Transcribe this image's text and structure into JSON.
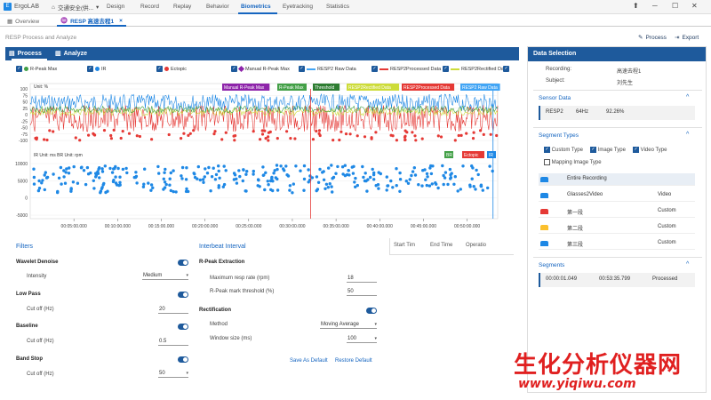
{
  "app": {
    "name": "ErgoLAB",
    "project": "交通安全(供..."
  },
  "nav": [
    "Design",
    "Record",
    "Replay",
    "Behavior",
    "Biometrics",
    "Eyetracking",
    "Statistics"
  ],
  "nav_active": "Biometrics",
  "tabs": [
    {
      "label": "Overview"
    },
    {
      "label": "RESP 高速去程1"
    }
  ],
  "subtitle": "RESP Process and Analyze",
  "actions": {
    "process": "Process",
    "export": "Export"
  },
  "panel": {
    "process": "Process",
    "analyze": "Analyze"
  },
  "legend": [
    {
      "label": "R-Peak Max",
      "color": "#43a047",
      "shape": "dot"
    },
    {
      "label": "IR",
      "color": "#1e88e5",
      "shape": "dot"
    },
    {
      "label": "Ectopic",
      "color": "#e53935",
      "shape": "dot"
    },
    {
      "label": "Manual R-Peak Max",
      "color": "#8e24aa",
      "shape": "diamond"
    },
    {
      "label": "RESP2 Raw Data",
      "color": "#42a5f5",
      "shape": "line"
    },
    {
      "label": "RESP2Processed Data",
      "color": "#e53935",
      "shape": "line"
    },
    {
      "label": "RESP2Rectified Data",
      "color": "#cddc39",
      "shape": "line"
    }
  ],
  "chart": {
    "unit_top": "Unit: %",
    "unit_bottom": "IR Unit: ms BR Unit: rpm",
    "y_top": [
      "100",
      "75",
      "50",
      "25",
      "0",
      "-25",
      "-50",
      "-75",
      "-100"
    ],
    "y_bottom": [
      "10000",
      "5000",
      "0",
      "-5000"
    ],
    "x_ticks": [
      "00:05:00.000",
      "00:10:00.000",
      "00:15:00.000",
      "00:20:00.000",
      "00:25:00.000",
      "00:30:00.000",
      "00:35:00.000",
      "00:40:00.000",
      "00:45:00.000",
      "00:50:00.000"
    ],
    "tags_top": [
      {
        "label": "Manual R-Peak Max",
        "color": "#8e24aa"
      },
      {
        "label": "R-Peak Max",
        "color": "#43a047"
      },
      {
        "label": "Threshold",
        "color": "#2e7d32"
      },
      {
        "label": "RESP2Rectified Data",
        "color": "#cddc39"
      },
      {
        "label": "RESP2Processed Data",
        "color": "#e53935"
      },
      {
        "label": "RESP2 Raw Data",
        "color": "#42a5f5"
      }
    ],
    "tags_bottom": [
      {
        "label": "BR",
        "color": "#43a047"
      },
      {
        "label": "Ectopic",
        "color": "#e53935"
      },
      {
        "label": "IR",
        "color": "#1e88e5"
      }
    ]
  },
  "filters": {
    "title": "Filters",
    "wavelet": {
      "label": "Wavelet Denoise",
      "intensity_label": "Intensity",
      "intensity": "Medium"
    },
    "lowpass": {
      "label": "Low Pass",
      "cutoff_label": "Cut off (Hz)",
      "cutoff": "20"
    },
    "baseline": {
      "label": "Baseline",
      "cutoff_label": "Cut off (Hz)",
      "cutoff": "0.5"
    },
    "bandstop": {
      "label": "Band Stop",
      "cutoff_label": "Cut off (Hz)",
      "cutoff": "50"
    }
  },
  "ibi": {
    "title": "Interbeat Interval",
    "rpeak": {
      "label": "R-Peak Extraction",
      "max_label": "Maximum resp rate (rpm)",
      "max": "18",
      "thr_label": "R-Peak mark threshold (%)",
      "thr": "50"
    },
    "rect": {
      "label": "Rectification",
      "method_label": "Method",
      "method": "Moving Average",
      "win_label": "Window size (ms)",
      "win": "100"
    },
    "save": "Save As Default",
    "restore": "Restore Default"
  },
  "table": {
    "cols": [
      "Start Tim",
      "End Time",
      "Operatio"
    ]
  },
  "data_selection": {
    "title": "Data Selection",
    "recording_label": "Recording:",
    "recording": "高速去程1",
    "subject_label": "Subject:",
    "subject": "刘先生",
    "sensor": {
      "title": "Sensor Data",
      "name": "RESP2",
      "rate": "64Hz",
      "pct": "92.26%"
    },
    "segtypes": {
      "title": "Segment Types",
      "custom": "Custom Type",
      "image": "Image Type",
      "video": "Video Type",
      "mapping": "Mapping Image Type"
    },
    "segments_list": [
      {
        "name": "Entire Recording",
        "type": "",
        "color": "#1e88e5"
      },
      {
        "name": "Glasses2Video",
        "type": "Video",
        "color": "#1e88e5"
      },
      {
        "name": "第一段",
        "type": "Custom",
        "color": "#e53935"
      },
      {
        "name": "第二段",
        "type": "Custom",
        "color": "#fbc02d"
      },
      {
        "name": "第三段",
        "type": "Custom",
        "color": "#1e88e5"
      }
    ],
    "segments": {
      "title": "Segments",
      "start": "00:00:01.049",
      "end": "00:53:35.799",
      "status": "Processed"
    }
  },
  "watermark": {
    "cn": "生化分析仪器网",
    "url": "www.yiqiwu.com"
  }
}
